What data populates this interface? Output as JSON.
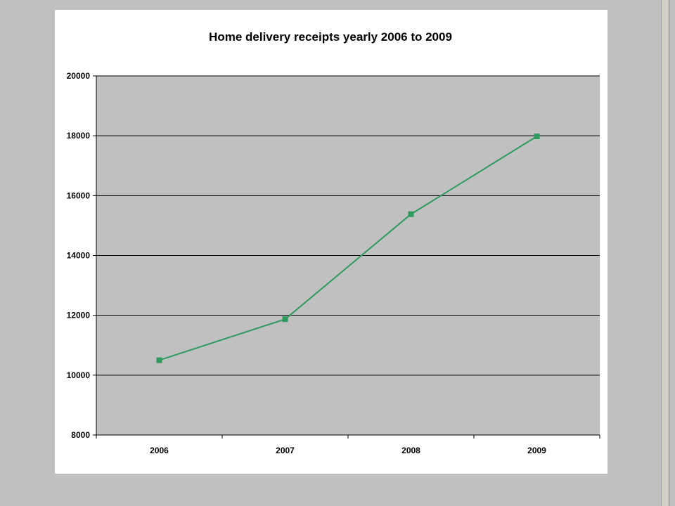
{
  "chart_data": {
    "type": "line",
    "title": "Home delivery receipts yearly 2006 to 2009",
    "categories": [
      "2006",
      "2007",
      "2008",
      "2009"
    ],
    "series": [
      {
        "values": [
          10500,
          11870,
          15380,
          17980
        ],
        "color": "#2e9a5e"
      }
    ],
    "ylim": [
      8000,
      20000
    ],
    "yticks": [
      8000,
      10000,
      12000,
      14000,
      16000,
      18000,
      20000
    ],
    "grid": true,
    "legend": "none",
    "plot_background": "#c0c0c0"
  }
}
